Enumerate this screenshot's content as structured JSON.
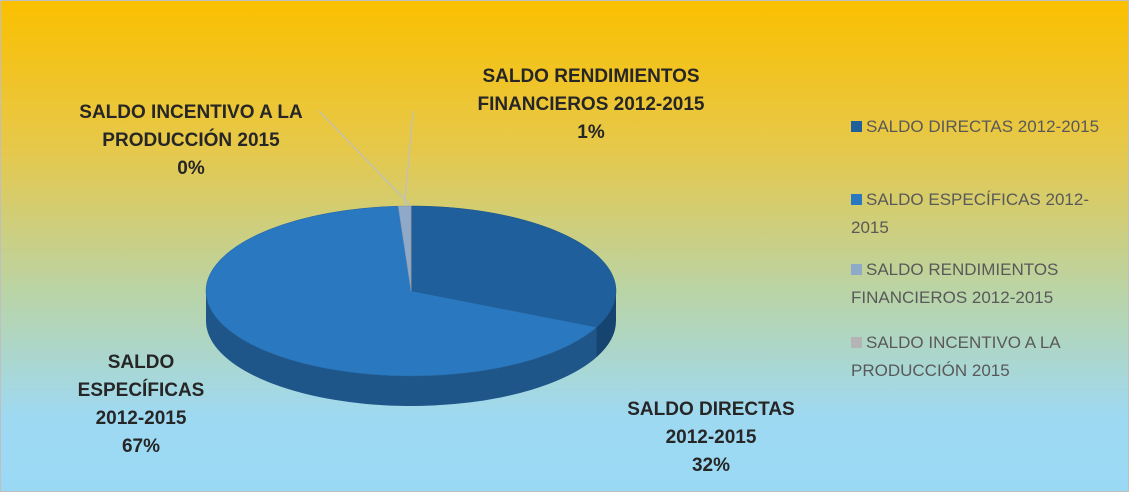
{
  "chart_data": {
    "type": "pie",
    "style": "3d",
    "categories": [
      "SALDO DIRECTAS 2012-2015",
      "SALDO ESPECÍFICAS 2012-2015",
      "SALDO RENDIMIENTOS FINANCIEROS 2012-2015",
      "SALDO INCENTIVO A LA PRODUCCIÓN 2015"
    ],
    "values": [
      32,
      67,
      1,
      0
    ],
    "value_labels": [
      "32%",
      "67%",
      "1%",
      "0%"
    ],
    "colors": [
      "#1f5f9c",
      "#2a78c0",
      "#8fa9c8",
      "#b4b4b4"
    ],
    "legend": "right"
  }
}
